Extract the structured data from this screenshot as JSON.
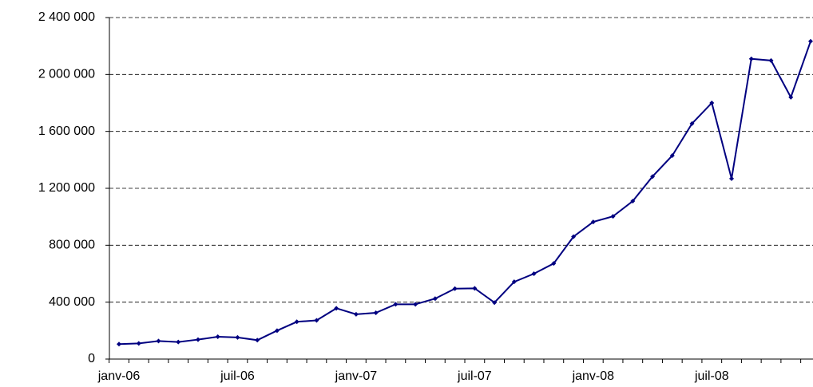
{
  "chart_data": {
    "type": "line",
    "categories": [
      "janv-06",
      null,
      null,
      null,
      null,
      null,
      "juil-06",
      null,
      null,
      null,
      null,
      null,
      "janv-07",
      null,
      null,
      null,
      null,
      null,
      "juil-07",
      null,
      null,
      null,
      null,
      null,
      "janv-08",
      null,
      null,
      null,
      null,
      null,
      "juil-08",
      null,
      null,
      null,
      null,
      null
    ],
    "series": [
      {
        "color": "#000080",
        "values": [
          105000,
          110000,
          127000,
          120000,
          137000,
          157000,
          152000,
          133000,
          200000,
          262000,
          272000,
          357000,
          315000,
          325000,
          385000,
          385000,
          425000,
          495000,
          497000,
          397000,
          543000,
          600000,
          672000,
          860000,
          964000,
          1003000,
          1110000,
          1283000,
          1430000,
          1655000,
          1800000,
          1268000,
          2110000,
          2098000,
          1840000,
          2233000
        ]
      }
    ],
    "ylim": [
      0,
      2400000
    ],
    "yticks": [
      0,
      {
        "value": 400000,
        "label": "400 000"
      },
      {
        "value": 800000,
        "label": "800 000"
      },
      {
        "value": 1200000,
        "label": "1 200 000"
      },
      {
        "value": 1600000,
        "label": "1 600 000"
      },
      {
        "value": 2000000,
        "label": "2 000 000"
      },
      {
        "value": 2400000,
        "label": "2 400 000"
      }
    ],
    "grid": true
  }
}
